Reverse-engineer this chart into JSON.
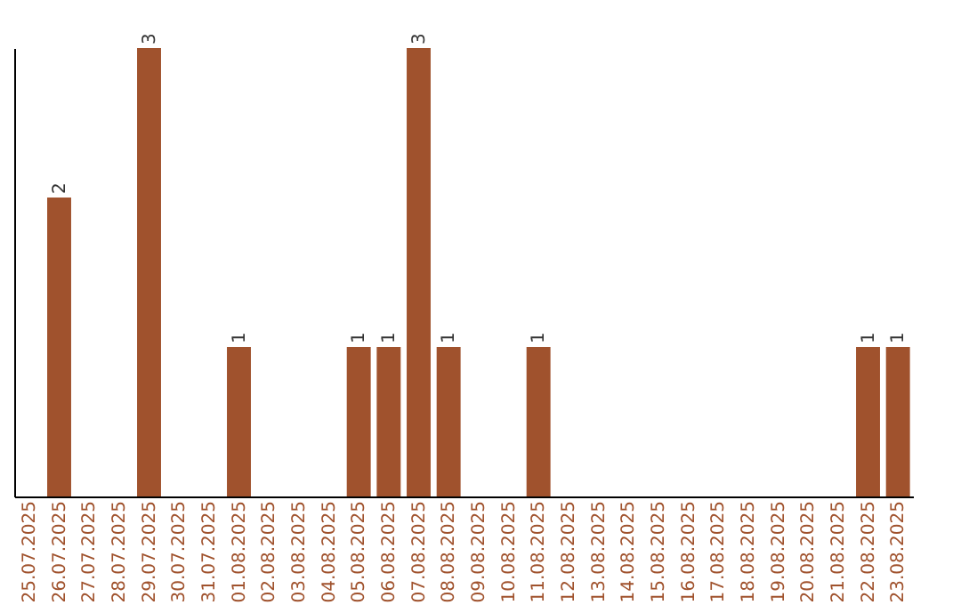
{
  "chart_data": {
    "type": "bar",
    "categories": [
      "25.07.2025",
      "26.07.2025",
      "27.07.2025",
      "28.07.2025",
      "29.07.2025",
      "30.07.2025",
      "31.07.2025",
      "01.08.2025",
      "02.08.2025",
      "03.08.2025",
      "04.08.2025",
      "05.08.2025",
      "06.08.2025",
      "07.08.2025",
      "08.08.2025",
      "09.08.2025",
      "10.08.2025",
      "11.08.2025",
      "12.08.2025",
      "13.08.2025",
      "14.08.2025",
      "15.08.2025",
      "16.08.2025",
      "17.08.2025",
      "18.08.2025",
      "19.08.2025",
      "20.08.2025",
      "21.08.2025",
      "22.08.2025",
      "23.08.2025"
    ],
    "values": [
      0,
      2,
      0,
      0,
      3,
      0,
      0,
      1,
      0,
      0,
      0,
      1,
      1,
      3,
      1,
      0,
      0,
      1,
      0,
      0,
      0,
      0,
      0,
      0,
      0,
      0,
      0,
      0,
      1,
      1
    ],
    "value_labels": [
      null,
      "2",
      null,
      null,
      "3",
      null,
      null,
      "1",
      null,
      null,
      null,
      "1",
      "1",
      "3",
      "1",
      null,
      null,
      "1",
      null,
      null,
      null,
      null,
      null,
      null,
      null,
      null,
      null,
      null,
      "1",
      "1"
    ],
    "color": "#a0522d",
    "ylim": [
      0,
      3
    ],
    "tick_labels": "x",
    "grid": false
  }
}
